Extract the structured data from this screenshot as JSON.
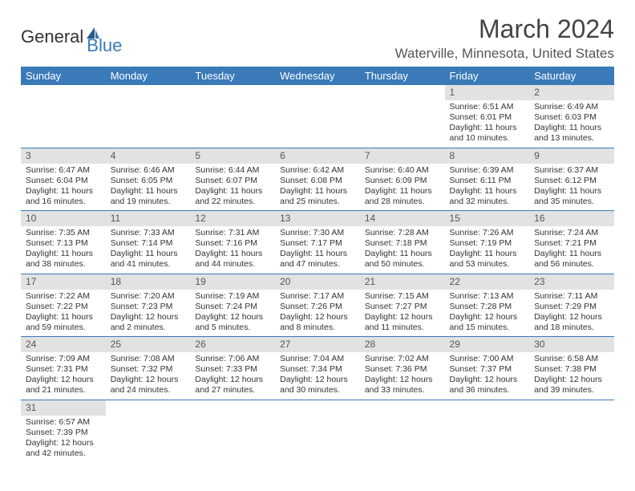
{
  "logo": {
    "text1": "General",
    "text2": "Blue"
  },
  "title": "March 2024",
  "location": "Waterville, Minnesota, United States",
  "weekdays": [
    "Sunday",
    "Monday",
    "Tuesday",
    "Wednesday",
    "Thursday",
    "Friday",
    "Saturday"
  ],
  "colors": {
    "header_bg": "#3a7ab8",
    "header_text": "#ffffff",
    "daynum_bg": "#e2e2e2",
    "border": "#3a7ab8",
    "text": "#333333"
  },
  "fonts": {
    "title_size": 32,
    "location_size": 17,
    "weekday_size": 13,
    "cell_size": 10.5
  },
  "weeks": [
    [
      null,
      null,
      null,
      null,
      null,
      {
        "day": "1",
        "sunrise": "Sunrise: 6:51 AM",
        "sunset": "Sunset: 6:01 PM",
        "daylight": "Daylight: 11 hours and 10 minutes."
      },
      {
        "day": "2",
        "sunrise": "Sunrise: 6:49 AM",
        "sunset": "Sunset: 6:03 PM",
        "daylight": "Daylight: 11 hours and 13 minutes."
      }
    ],
    [
      {
        "day": "3",
        "sunrise": "Sunrise: 6:47 AM",
        "sunset": "Sunset: 6:04 PM",
        "daylight": "Daylight: 11 hours and 16 minutes."
      },
      {
        "day": "4",
        "sunrise": "Sunrise: 6:46 AM",
        "sunset": "Sunset: 6:05 PM",
        "daylight": "Daylight: 11 hours and 19 minutes."
      },
      {
        "day": "5",
        "sunrise": "Sunrise: 6:44 AM",
        "sunset": "Sunset: 6:07 PM",
        "daylight": "Daylight: 11 hours and 22 minutes."
      },
      {
        "day": "6",
        "sunrise": "Sunrise: 6:42 AM",
        "sunset": "Sunset: 6:08 PM",
        "daylight": "Daylight: 11 hours and 25 minutes."
      },
      {
        "day": "7",
        "sunrise": "Sunrise: 6:40 AM",
        "sunset": "Sunset: 6:09 PM",
        "daylight": "Daylight: 11 hours and 28 minutes."
      },
      {
        "day": "8",
        "sunrise": "Sunrise: 6:39 AM",
        "sunset": "Sunset: 6:11 PM",
        "daylight": "Daylight: 11 hours and 32 minutes."
      },
      {
        "day": "9",
        "sunrise": "Sunrise: 6:37 AM",
        "sunset": "Sunset: 6:12 PM",
        "daylight": "Daylight: 11 hours and 35 minutes."
      }
    ],
    [
      {
        "day": "10",
        "sunrise": "Sunrise: 7:35 AM",
        "sunset": "Sunset: 7:13 PM",
        "daylight": "Daylight: 11 hours and 38 minutes."
      },
      {
        "day": "11",
        "sunrise": "Sunrise: 7:33 AM",
        "sunset": "Sunset: 7:14 PM",
        "daylight": "Daylight: 11 hours and 41 minutes."
      },
      {
        "day": "12",
        "sunrise": "Sunrise: 7:31 AM",
        "sunset": "Sunset: 7:16 PM",
        "daylight": "Daylight: 11 hours and 44 minutes."
      },
      {
        "day": "13",
        "sunrise": "Sunrise: 7:30 AM",
        "sunset": "Sunset: 7:17 PM",
        "daylight": "Daylight: 11 hours and 47 minutes."
      },
      {
        "day": "14",
        "sunrise": "Sunrise: 7:28 AM",
        "sunset": "Sunset: 7:18 PM",
        "daylight": "Daylight: 11 hours and 50 minutes."
      },
      {
        "day": "15",
        "sunrise": "Sunrise: 7:26 AM",
        "sunset": "Sunset: 7:19 PM",
        "daylight": "Daylight: 11 hours and 53 minutes."
      },
      {
        "day": "16",
        "sunrise": "Sunrise: 7:24 AM",
        "sunset": "Sunset: 7:21 PM",
        "daylight": "Daylight: 11 hours and 56 minutes."
      }
    ],
    [
      {
        "day": "17",
        "sunrise": "Sunrise: 7:22 AM",
        "sunset": "Sunset: 7:22 PM",
        "daylight": "Daylight: 11 hours and 59 minutes."
      },
      {
        "day": "18",
        "sunrise": "Sunrise: 7:20 AM",
        "sunset": "Sunset: 7:23 PM",
        "daylight": "Daylight: 12 hours and 2 minutes."
      },
      {
        "day": "19",
        "sunrise": "Sunrise: 7:19 AM",
        "sunset": "Sunset: 7:24 PM",
        "daylight": "Daylight: 12 hours and 5 minutes."
      },
      {
        "day": "20",
        "sunrise": "Sunrise: 7:17 AM",
        "sunset": "Sunset: 7:26 PM",
        "daylight": "Daylight: 12 hours and 8 minutes."
      },
      {
        "day": "21",
        "sunrise": "Sunrise: 7:15 AM",
        "sunset": "Sunset: 7:27 PM",
        "daylight": "Daylight: 12 hours and 11 minutes."
      },
      {
        "day": "22",
        "sunrise": "Sunrise: 7:13 AM",
        "sunset": "Sunset: 7:28 PM",
        "daylight": "Daylight: 12 hours and 15 minutes."
      },
      {
        "day": "23",
        "sunrise": "Sunrise: 7:11 AM",
        "sunset": "Sunset: 7:29 PM",
        "daylight": "Daylight: 12 hours and 18 minutes."
      }
    ],
    [
      {
        "day": "24",
        "sunrise": "Sunrise: 7:09 AM",
        "sunset": "Sunset: 7:31 PM",
        "daylight": "Daylight: 12 hours and 21 minutes."
      },
      {
        "day": "25",
        "sunrise": "Sunrise: 7:08 AM",
        "sunset": "Sunset: 7:32 PM",
        "daylight": "Daylight: 12 hours and 24 minutes."
      },
      {
        "day": "26",
        "sunrise": "Sunrise: 7:06 AM",
        "sunset": "Sunset: 7:33 PM",
        "daylight": "Daylight: 12 hours and 27 minutes."
      },
      {
        "day": "27",
        "sunrise": "Sunrise: 7:04 AM",
        "sunset": "Sunset: 7:34 PM",
        "daylight": "Daylight: 12 hours and 30 minutes."
      },
      {
        "day": "28",
        "sunrise": "Sunrise: 7:02 AM",
        "sunset": "Sunset: 7:36 PM",
        "daylight": "Daylight: 12 hours and 33 minutes."
      },
      {
        "day": "29",
        "sunrise": "Sunrise: 7:00 AM",
        "sunset": "Sunset: 7:37 PM",
        "daylight": "Daylight: 12 hours and 36 minutes."
      },
      {
        "day": "30",
        "sunrise": "Sunrise: 6:58 AM",
        "sunset": "Sunset: 7:38 PM",
        "daylight": "Daylight: 12 hours and 39 minutes."
      }
    ],
    [
      {
        "day": "31",
        "sunrise": "Sunrise: 6:57 AM",
        "sunset": "Sunset: 7:39 PM",
        "daylight": "Daylight: 12 hours and 42 minutes."
      },
      null,
      null,
      null,
      null,
      null,
      null
    ]
  ]
}
